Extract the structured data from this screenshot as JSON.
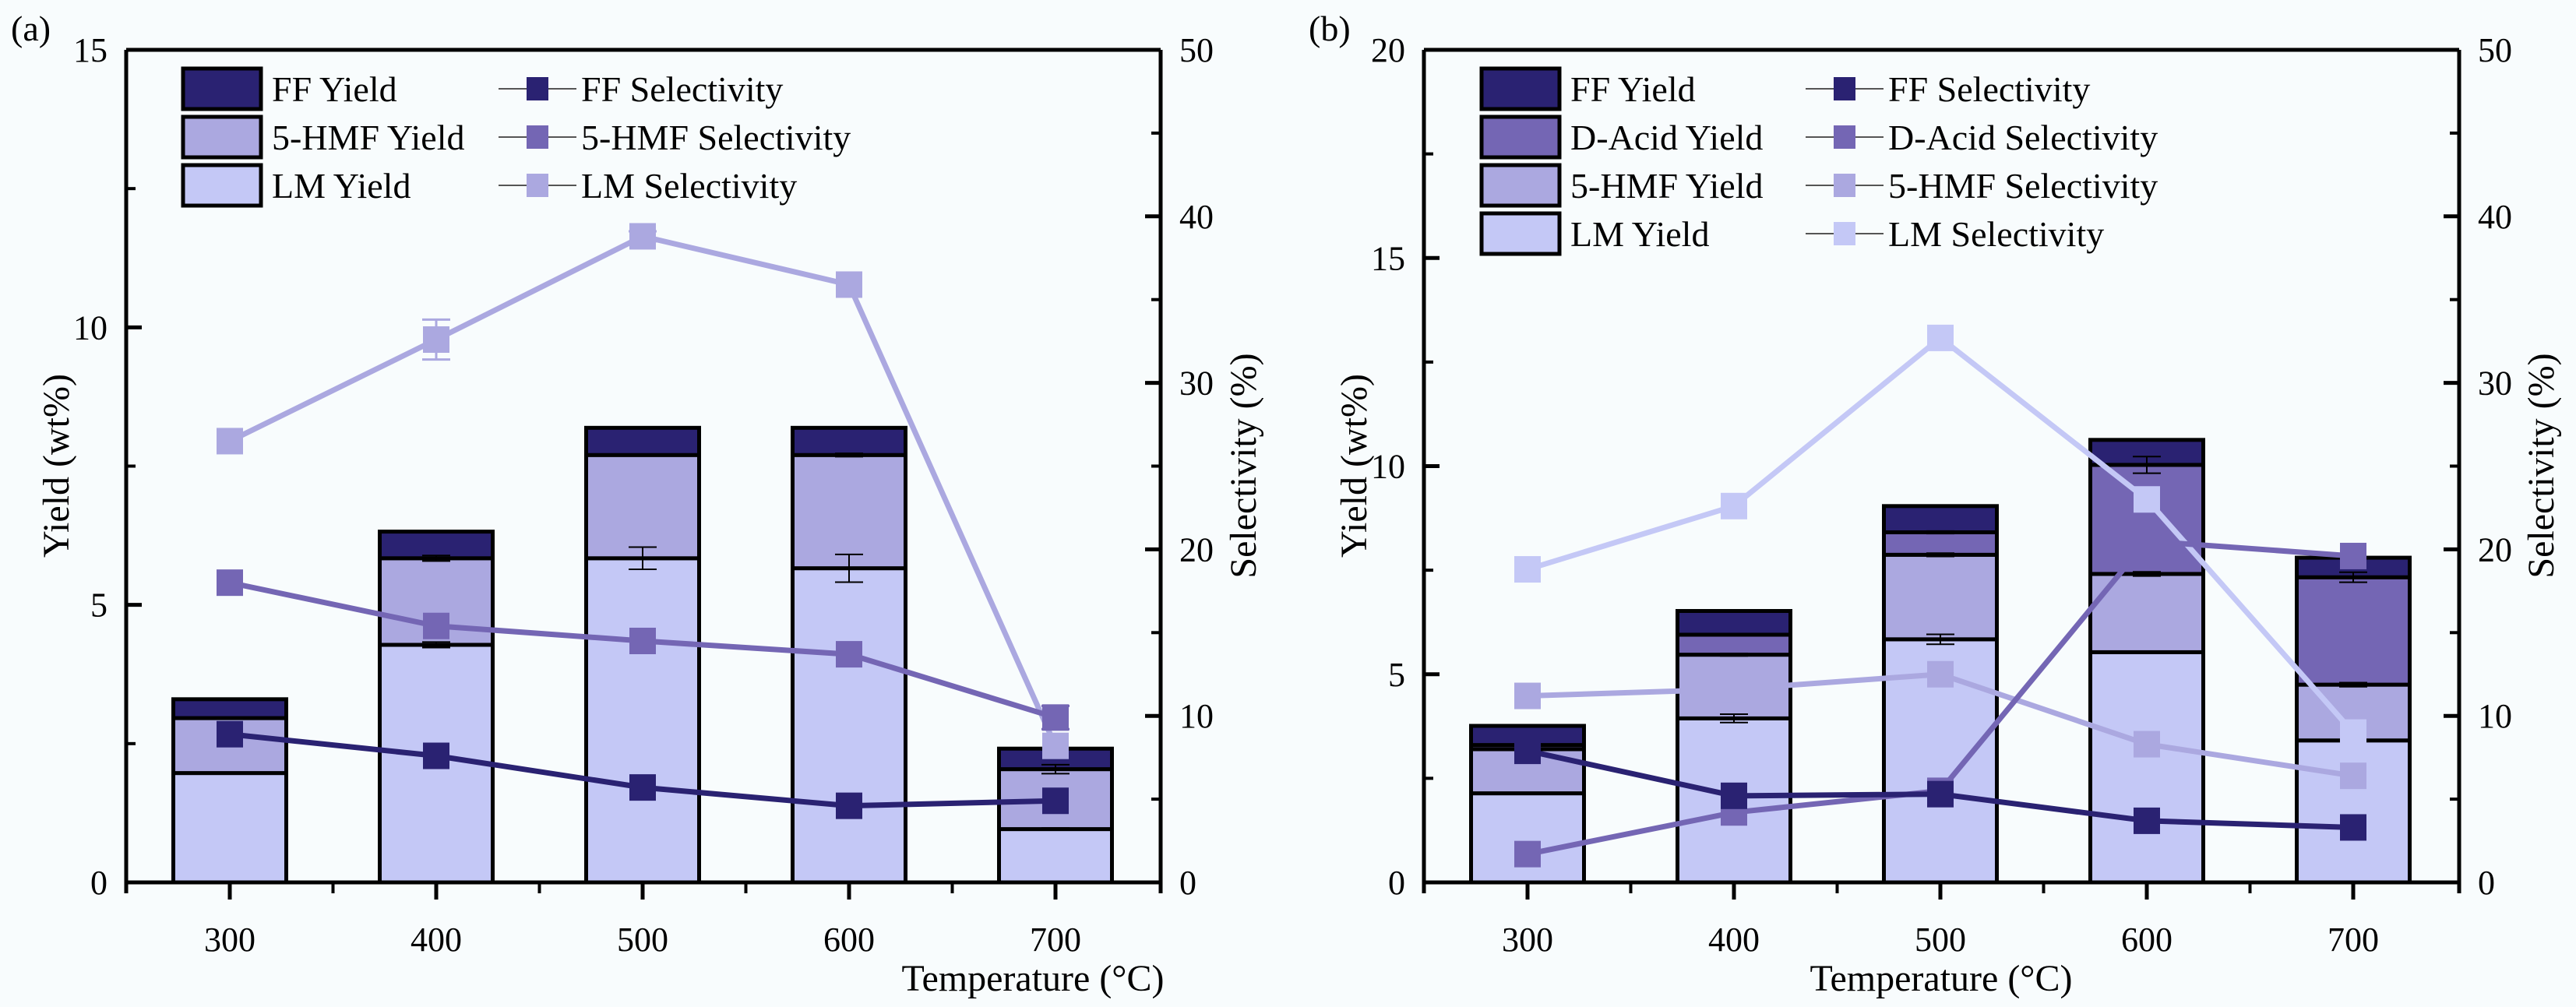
{
  "chart_data": [
    {
      "type": "bar",
      "stacked": true,
      "panel_label": "(a)",
      "xlabel": "Temperature (°C)",
      "ylabel": "Yield (wt%)",
      "y2label": "Selectivity (%)",
      "categories": [
        "300",
        "400",
        "500",
        "600",
        "700"
      ],
      "ylim": [
        0,
        15
      ],
      "yticks": [
        0,
        5,
        10,
        15
      ],
      "y2lim": [
        0,
        50
      ],
      "y2ticks": [
        0,
        10,
        20,
        30,
        40,
        50
      ],
      "grid": false,
      "legend_position": "top-left",
      "bar_series": [
        {
          "name": "LM Yield",
          "color": "#c4c8f6",
          "values": [
            1.97,
            4.28,
            5.84,
            5.66,
            0.96
          ],
          "errors": [
            0,
            0.05,
            0.2,
            0.25,
            0.02
          ]
        },
        {
          "name": "5-HMF Yield",
          "color": "#aba8e0",
          "values": [
            0.99,
            1.56,
            1.86,
            2.04,
            1.08
          ],
          "errors": [
            0,
            0.05,
            0,
            0.03,
            0.08
          ]
        },
        {
          "name": "FF Yield",
          "color": "#2a2272",
          "values": [
            0.34,
            0.48,
            0.49,
            0.49,
            0.37
          ],
          "errors": [
            0,
            0,
            0,
            0,
            0
          ]
        }
      ],
      "line_series": [
        {
          "name": "FF Selectivity",
          "color": "#2a2272",
          "values": [
            8.9,
            7.6,
            5.7,
            4.6,
            4.9
          ],
          "errors": [
            0,
            0,
            0,
            0,
            0
          ]
        },
        {
          "name": "5-HMF Selectivity",
          "color": "#7466b4",
          "values": [
            18.0,
            15.4,
            14.5,
            13.7,
            9.9
          ],
          "errors": [
            0,
            0,
            0,
            0,
            0.7
          ]
        },
        {
          "name": "LM Selectivity",
          "color": "#aba8e0",
          "values": [
            26.5,
            32.6,
            38.8,
            35.9,
            8.2
          ],
          "errors": [
            0,
            1.2,
            0.3,
            0,
            0
          ]
        }
      ],
      "legend": {
        "bars": [
          "FF Yield",
          "5-HMF Yield",
          "LM Yield"
        ],
        "lines": [
          "FF Selectivity",
          "5-HMF Selectivity",
          "LM Selectivity"
        ]
      }
    },
    {
      "type": "bar",
      "stacked": true,
      "panel_label": "(b)",
      "xlabel": "Temperature (°C)",
      "ylabel": "Yield (wt%)",
      "y2label": "Selectivity (%)",
      "categories": [
        "300",
        "400",
        "500",
        "600",
        "700"
      ],
      "ylim": [
        0,
        20
      ],
      "yticks": [
        0,
        5,
        10,
        15,
        20
      ],
      "y2lim": [
        0,
        50
      ],
      "y2ticks": [
        0,
        10,
        20,
        30,
        40,
        50
      ],
      "grid": false,
      "legend_position": "top-left",
      "bar_series": [
        {
          "name": "LM Yield",
          "color": "#c4c8f6",
          "values": [
            2.14,
            3.94,
            5.84,
            5.53,
            3.41
          ],
          "errors": [
            0.02,
            0.1,
            0.12,
            0.02,
            0.02
          ]
        },
        {
          "name": "5-HMF Yield",
          "color": "#aba8e0",
          "values": [
            1.06,
            1.53,
            2.03,
            1.88,
            1.34
          ],
          "errors": [
            0,
            0.03,
            0.04,
            0.05,
            0.05
          ]
        },
        {
          "name": "D-Acid Yield",
          "color": "#7466b4",
          "values": [
            0.1,
            0.48,
            0.54,
            2.62,
            2.58
          ],
          "errors": [
            0,
            0,
            0.03,
            0.2,
            0.12
          ]
        },
        {
          "name": "FF Yield",
          "color": "#2a2272",
          "values": [
            0.46,
            0.57,
            0.63,
            0.6,
            0.47
          ],
          "errors": [
            0,
            0,
            0,
            0,
            0
          ]
        }
      ],
      "line_series": [
        {
          "name": "FF Selectivity",
          "color": "#2a2272",
          "values": [
            7.9,
            5.2,
            5.3,
            3.7,
            3.3
          ],
          "errors": [
            0,
            0,
            0,
            0,
            0
          ]
        },
        {
          "name": "D-Acid Selectivity",
          "color": "#7466b4",
          "values": [
            1.7,
            4.2,
            5.5,
            20.5,
            19.6
          ],
          "errors": [
            0,
            0,
            0,
            0,
            0
          ]
        },
        {
          "name": "5-HMF Selectivity",
          "color": "#aba8e0",
          "values": [
            11.2,
            11.6,
            12.5,
            8.3,
            6.4
          ],
          "errors": [
            0,
            0,
            0,
            0,
            0
          ]
        },
        {
          "name": "LM Selectivity",
          "color": "#c4c8f6",
          "values": [
            18.8,
            22.6,
            32.7,
            23.0,
            9.0
          ],
          "errors": [
            0,
            0,
            0,
            0,
            0
          ]
        }
      ],
      "legend": {
        "bars": [
          "FF Yield",
          "D-Acid Yield",
          "5-HMF Yield",
          "LM Yield"
        ],
        "lines": [
          "FF Selectivity",
          "D-Acid Selectivity",
          "5-HMF Selectivity",
          "LM Selectivity"
        ]
      }
    }
  ]
}
